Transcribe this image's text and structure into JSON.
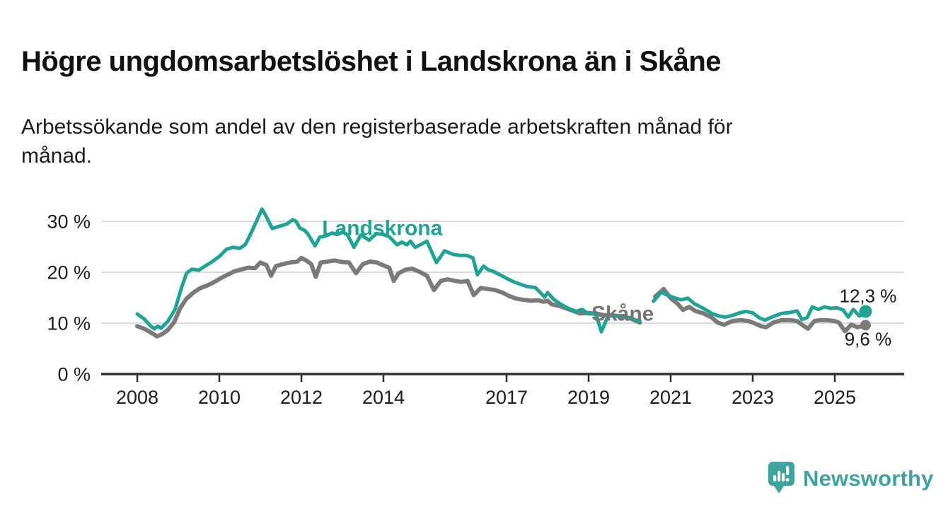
{
  "header": {
    "title": "Högre ungdomsarbetslöshet i Landskrona än i Skåne",
    "subtitle": "Arbetssökande som andel av den registerbaserade arbetskraften månad för\nmånad."
  },
  "footer": {
    "brand": "Newsworthy",
    "brand_color": "#3fa49f",
    "logo_icon": "bar-chart-speech-bubble-icon"
  },
  "chart_data": {
    "type": "line",
    "title": "Högre ungdomsarbetslöshet i Landskrona än i Skåne",
    "subtitle": "Arbetssökande som andel av den registerbaserade arbetskraften månad för månad.",
    "unit": "percent",
    "grid": true,
    "grid_color": "#d9d9d9",
    "axis_color": "#2e2e2e",
    "tick_label_color": "#1c1c1c",
    "x_range": [
      2007.12,
      2026.69
    ],
    "y_range": [
      0,
      33.89
    ],
    "x_ticks": [
      {
        "v": 2008,
        "label": "2008"
      },
      {
        "v": 2010,
        "label": "2010"
      },
      {
        "v": 2012,
        "label": "2012"
      },
      {
        "v": 2014,
        "label": "2014"
      },
      {
        "v": 2017,
        "label": "2017"
      },
      {
        "v": 2019,
        "label": "2019"
      },
      {
        "v": 2021,
        "label": "2021"
      },
      {
        "v": 2023,
        "label": "2023"
      },
      {
        "v": 2025,
        "label": "2025"
      }
    ],
    "y_ticks": [
      {
        "v": 0,
        "label": "0 %"
      },
      {
        "v": 10,
        "label": "10 %"
      },
      {
        "v": 20,
        "label": "20 %"
      },
      {
        "v": 30,
        "label": "30 %"
      }
    ],
    "series": [
      {
        "id": "skane",
        "name": "Skåne",
        "color": "#7a7a7a",
        "line_width": 6,
        "end_dot_r": 7.5,
        "last_value_label": "9,6 %",
        "segments": [
          [
            [
              2008.0,
              9.4
            ],
            [
              2008.17,
              8.9
            ],
            [
              2008.3,
              8.3
            ],
            [
              2008.48,
              7.4
            ],
            [
              2008.62,
              7.9
            ],
            [
              2008.75,
              8.7
            ],
            [
              2008.9,
              10.2
            ],
            [
              2009.05,
              13.0
            ],
            [
              2009.2,
              14.8
            ],
            [
              2009.37,
              16.0
            ],
            [
              2009.54,
              16.9
            ],
            [
              2009.71,
              17.4
            ],
            [
              2009.88,
              18.1
            ],
            [
              2010.05,
              18.9
            ],
            [
              2010.2,
              19.5
            ],
            [
              2010.37,
              20.2
            ],
            [
              2010.52,
              20.5
            ],
            [
              2010.7,
              20.9
            ],
            [
              2010.87,
              20.8
            ],
            [
              2011.0,
              21.9
            ],
            [
              2011.15,
              21.4
            ],
            [
              2011.26,
              19.3
            ],
            [
              2011.38,
              21.2
            ],
            [
              2011.55,
              21.6
            ],
            [
              2011.72,
              21.9
            ],
            [
              2011.9,
              22.1
            ],
            [
              2012.0,
              22.8
            ],
            [
              2012.12,
              22.3
            ],
            [
              2012.24,
              21.6
            ],
            [
              2012.35,
              19.1
            ],
            [
              2012.47,
              21.9
            ],
            [
              2012.64,
              22.1
            ],
            [
              2012.81,
              22.3
            ],
            [
              2013.0,
              22.0
            ],
            [
              2013.16,
              21.9
            ],
            [
              2013.33,
              19.8
            ],
            [
              2013.5,
              21.6
            ],
            [
              2013.67,
              22.1
            ],
            [
              2013.84,
              21.9
            ],
            [
              2013.98,
              21.4
            ],
            [
              2014.14,
              20.9
            ],
            [
              2014.25,
              18.3
            ],
            [
              2014.37,
              19.8
            ],
            [
              2014.54,
              20.5
            ],
            [
              2014.7,
              20.7
            ],
            [
              2014.9,
              20.0
            ],
            [
              2015.06,
              19.3
            ],
            [
              2015.23,
              16.5
            ],
            [
              2015.4,
              18.3
            ],
            [
              2015.57,
              18.6
            ],
            [
              2015.74,
              18.3
            ],
            [
              2015.9,
              18.1
            ],
            [
              2016.05,
              18.3
            ],
            [
              2016.2,
              15.5
            ],
            [
              2016.37,
              16.9
            ],
            [
              2016.55,
              16.7
            ],
            [
              2016.72,
              16.5
            ],
            [
              2016.9,
              16.0
            ],
            [
              2017.07,
              15.3
            ],
            [
              2017.24,
              14.8
            ],
            [
              2017.4,
              14.6
            ],
            [
              2017.6,
              14.4
            ],
            [
              2017.77,
              14.5
            ],
            [
              2017.9,
              14.2
            ],
            [
              2018.0,
              14.4
            ],
            [
              2018.1,
              13.7
            ],
            [
              2018.28,
              13.4
            ],
            [
              2018.45,
              12.9
            ],
            [
              2018.62,
              12.4
            ],
            [
              2018.79,
              11.9
            ],
            [
              2019.0,
              12.0
            ],
            [
              2019.17,
              11.8
            ],
            [
              2019.35,
              11.6
            ],
            [
              2019.62,
              11.5
            ],
            [
              2019.83,
              11.3
            ],
            [
              2020.0,
              11.0
            ],
            [
              2020.25,
              10.1
            ]
          ],
          [
            [
              2020.62,
              15.2
            ],
            [
              2020.83,
              16.7
            ],
            [
              2021.0,
              14.9
            ],
            [
              2021.17,
              13.8
            ],
            [
              2021.3,
              12.6
            ],
            [
              2021.45,
              13.2
            ],
            [
              2021.6,
              12.4
            ],
            [
              2021.8,
              11.9
            ],
            [
              2022.0,
              11.1
            ],
            [
              2022.15,
              10.1
            ],
            [
              2022.3,
              9.7
            ],
            [
              2022.5,
              10.4
            ],
            [
              2022.7,
              10.6
            ],
            [
              2022.9,
              10.4
            ],
            [
              2023.0,
              10.1
            ],
            [
              2023.2,
              9.4
            ],
            [
              2023.33,
              9.2
            ],
            [
              2023.5,
              10.1
            ],
            [
              2023.7,
              10.6
            ],
            [
              2023.9,
              10.6
            ],
            [
              2024.08,
              10.4
            ],
            [
              2024.25,
              9.4
            ],
            [
              2024.35,
              8.9
            ],
            [
              2024.5,
              10.4
            ],
            [
              2024.65,
              10.6
            ],
            [
              2024.8,
              10.6
            ],
            [
              2025.0,
              10.4
            ],
            [
              2025.1,
              10.1
            ],
            [
              2025.25,
              8.4
            ],
            [
              2025.4,
              9.7
            ],
            [
              2025.55,
              9.2
            ],
            [
              2025.75,
              9.6
            ]
          ]
        ]
      },
      {
        "id": "landskrona",
        "name": "Landskrona",
        "color": "#1fa493",
        "line_width": 5,
        "end_dot_r": 9,
        "last_value_label": "12,3 %",
        "segments": [
          [
            [
              2008.0,
              11.8
            ],
            [
              2008.17,
              10.8
            ],
            [
              2008.33,
              9.4
            ],
            [
              2008.42,
              8.9
            ],
            [
              2008.5,
              9.4
            ],
            [
              2008.58,
              9.0
            ],
            [
              2008.75,
              10.4
            ],
            [
              2008.92,
              12.7
            ],
            [
              2009.08,
              17.0
            ],
            [
              2009.2,
              19.8
            ],
            [
              2009.33,
              20.6
            ],
            [
              2009.5,
              20.4
            ],
            [
              2009.67,
              21.3
            ],
            [
              2009.83,
              22.1
            ],
            [
              2010.0,
              23.1
            ],
            [
              2010.17,
              24.5
            ],
            [
              2010.33,
              24.9
            ],
            [
              2010.5,
              24.7
            ],
            [
              2010.63,
              25.4
            ],
            [
              2010.75,
              27.3
            ],
            [
              2010.87,
              29.4
            ],
            [
              2011.04,
              32.4
            ],
            [
              2011.12,
              31.3
            ],
            [
              2011.29,
              28.6
            ],
            [
              2011.45,
              29.0
            ],
            [
              2011.54,
              29.2
            ],
            [
              2011.65,
              29.5
            ],
            [
              2011.79,
              30.3
            ],
            [
              2011.87,
              30.0
            ],
            [
              2011.96,
              28.7
            ],
            [
              2012.08,
              28.2
            ],
            [
              2012.16,
              27.5
            ],
            [
              2012.33,
              25.2
            ],
            [
              2012.45,
              26.9
            ],
            [
              2012.58,
              27.1
            ],
            [
              2012.75,
              27.7
            ],
            [
              2012.87,
              27.4
            ],
            [
              2013.0,
              27.9
            ],
            [
              2013.12,
              27.4
            ],
            [
              2013.28,
              24.9
            ],
            [
              2013.45,
              27.3
            ],
            [
              2013.65,
              26.3
            ],
            [
              2013.83,
              27.6
            ],
            [
              2014.0,
              27.4
            ],
            [
              2014.14,
              27.0
            ],
            [
              2014.33,
              25.4
            ],
            [
              2014.45,
              25.9
            ],
            [
              2014.57,
              25.4
            ],
            [
              2014.66,
              26.1
            ],
            [
              2014.77,
              24.9
            ],
            [
              2014.9,
              25.4
            ],
            [
              2015.06,
              26.1
            ],
            [
              2015.29,
              21.9
            ],
            [
              2015.49,
              24.2
            ],
            [
              2015.7,
              23.5
            ],
            [
              2015.86,
              23.3
            ],
            [
              2016.03,
              23.3
            ],
            [
              2016.18,
              22.8
            ],
            [
              2016.29,
              19.5
            ],
            [
              2016.44,
              21.2
            ],
            [
              2016.55,
              20.5
            ],
            [
              2016.67,
              20.2
            ],
            [
              2016.84,
              19.5
            ],
            [
              2017.0,
              18.8
            ],
            [
              2017.18,
              18.1
            ],
            [
              2017.35,
              17.6
            ],
            [
              2017.5,
              17.2
            ],
            [
              2017.7,
              17.0
            ],
            [
              2017.8,
              16.2
            ],
            [
              2017.93,
              15.1
            ],
            [
              2018.0,
              16.0
            ],
            [
              2018.16,
              14.6
            ],
            [
              2018.33,
              13.7
            ],
            [
              2018.5,
              12.9
            ],
            [
              2018.7,
              12.3
            ],
            [
              2018.84,
              12.7
            ],
            [
              2019.0,
              11.8
            ],
            [
              2019.17,
              12.0
            ],
            [
              2019.31,
              8.3
            ],
            [
              2019.48,
              11.5
            ],
            [
              2019.65,
              11.4
            ],
            [
              2019.83,
              11.2
            ],
            [
              2020.0,
              11.0
            ],
            [
              2020.25,
              10.4
            ]
          ],
          [
            [
              2020.58,
              14.3
            ],
            [
              2020.77,
              16.1
            ],
            [
              2020.92,
              15.5
            ],
            [
              2021.08,
              15.0
            ],
            [
              2021.25,
              14.6
            ],
            [
              2021.42,
              14.9
            ],
            [
              2021.58,
              13.8
            ],
            [
              2021.75,
              13.1
            ],
            [
              2021.92,
              12.3
            ],
            [
              2022.0,
              11.9
            ],
            [
              2022.17,
              11.4
            ],
            [
              2022.33,
              11.2
            ],
            [
              2022.5,
              11.5
            ],
            [
              2022.67,
              12.0
            ],
            [
              2022.83,
              12.3
            ],
            [
              2023.0,
              12.0
            ],
            [
              2023.17,
              11.0
            ],
            [
              2023.3,
              10.6
            ],
            [
              2023.5,
              11.3
            ],
            [
              2023.7,
              11.9
            ],
            [
              2023.9,
              12.1
            ],
            [
              2024.08,
              12.4
            ],
            [
              2024.2,
              10.7
            ],
            [
              2024.33,
              11.1
            ],
            [
              2024.45,
              13.2
            ],
            [
              2024.6,
              12.7
            ],
            [
              2024.75,
              13.2
            ],
            [
              2024.9,
              12.9
            ],
            [
              2025.05,
              13.0
            ],
            [
              2025.2,
              12.6
            ],
            [
              2025.33,
              11.2
            ],
            [
              2025.45,
              12.7
            ],
            [
              2025.6,
              11.4
            ],
            [
              2025.75,
              12.3
            ]
          ]
        ]
      }
    ],
    "annotations": [
      {
        "id": "series-label-landskrona",
        "text": "Landskrona",
        "x": 2013.97,
        "y": 28.75,
        "color": "#1fa493",
        "size": 30,
        "weight": "bold"
      },
      {
        "id": "series-label-skane",
        "text": "Skåne",
        "x": 2019.83,
        "y": 11.95,
        "color": "#757575",
        "size": 30,
        "weight": "bold"
      },
      {
        "id": "end-value-landskrona",
        "text": "12,3 %",
        "x": 2025.81,
        "y": 15.35,
        "color": "#1b1b1b",
        "size": 26,
        "weight": "normal"
      },
      {
        "id": "end-value-skane",
        "text": "9,6 %",
        "x": 2025.81,
        "y": 6.9,
        "color": "#1b1b1b",
        "size": 26,
        "weight": "normal"
      }
    ]
  }
}
